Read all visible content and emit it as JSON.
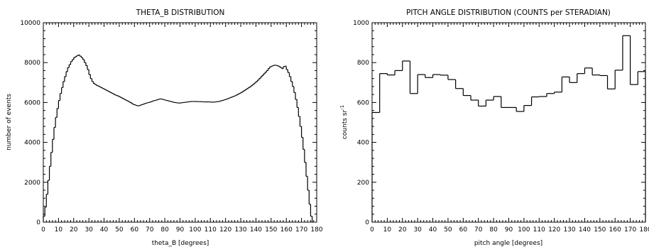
{
  "chart_data": [
    {
      "type": "bar",
      "style": "step-histogram",
      "title": "THETA_B DISTRIBUTION",
      "xlabel": "theta_B [degrees]",
      "ylabel": "number of events",
      "xlim": [
        0,
        180
      ],
      "ylim": [
        0,
        10000
      ],
      "xticks": [
        "0",
        "10",
        "20",
        "30",
        "40",
        "50",
        "60",
        "70",
        "80",
        "90",
        "100",
        "110",
        "120",
        "130",
        "140",
        "150",
        "160",
        "170",
        "180"
      ],
      "yticks": [
        "0",
        "2000",
        "4000",
        "6000",
        "8000",
        "10000"
      ],
      "bin_width": 1,
      "x_start": 0,
      "values": [
        300,
        750,
        1400,
        2100,
        2800,
        3500,
        4150,
        4750,
        5250,
        5700,
        6100,
        6450,
        6750,
        7050,
        7300,
        7550,
        7750,
        7900,
        8050,
        8150,
        8250,
        8300,
        8350,
        8380,
        8320,
        8250,
        8150,
        8000,
        7850,
        7650,
        7400,
        7200,
        7050,
        6950,
        6900,
        6850,
        6820,
        6780,
        6740,
        6700,
        6660,
        6620,
        6580,
        6540,
        6500,
        6460,
        6420,
        6380,
        6350,
        6320,
        6280,
        6240,
        6200,
        6160,
        6120,
        6080,
        6040,
        6000,
        5950,
        5900,
        5880,
        5850,
        5830,
        5850,
        5880,
        5900,
        5930,
        5960,
        5980,
        6000,
        6020,
        6050,
        6080,
        6100,
        6120,
        6150,
        6170,
        6180,
        6160,
        6140,
        6120,
        6100,
        6080,
        6060,
        6040,
        6020,
        6000,
        5990,
        5980,
        5970,
        5980,
        5990,
        6000,
        6010,
        6020,
        6030,
        6040,
        6050,
        6050,
        6050,
        6050,
        6050,
        6040,
        6040,
        6040,
        6030,
        6030,
        6030,
        6030,
        6030,
        6020,
        6020,
        6020,
        6030,
        6040,
        6050,
        6070,
        6090,
        6110,
        6140,
        6160,
        6190,
        6220,
        6250,
        6280,
        6310,
        6340,
        6380,
        6420,
        6460,
        6500,
        6550,
        6600,
        6650,
        6700,
        6750,
        6800,
        6860,
        6920,
        6980,
        7050,
        7120,
        7200,
        7280,
        7360,
        7440,
        7520,
        7600,
        7700,
        7780,
        7820,
        7850,
        7870,
        7860,
        7840,
        7800,
        7750,
        7700,
        7800,
        7820,
        7650,
        7500,
        7300,
        7050,
        6800,
        6500,
        6150,
        5750,
        5300,
        4800,
        4250,
        3650,
        3000,
        2300,
        1600,
        900,
        300
      ],
      "grid": false,
      "legend": "none"
    },
    {
      "type": "bar",
      "style": "step-histogram",
      "title": "PITCH ANGLE DISTRIBUTION (COUNTS per STERADIAN)",
      "xlabel": "pitch angle [degrees]",
      "ylabel": "counts sr",
      "ylabel_sup": "-1",
      "xlim": [
        0,
        180
      ],
      "ylim": [
        0,
        1000
      ],
      "xticks": [
        "0",
        "10",
        "20",
        "30",
        "40",
        "50",
        "60",
        "70",
        "80",
        "90",
        "100",
        "110",
        "120",
        "130",
        "140",
        "150",
        "160",
        "170",
        "180"
      ],
      "yticks": [
        "0",
        "200",
        "400",
        "600",
        "800",
        "1000"
      ],
      "bin_width": 5,
      "x_start": 0,
      "values": [
        550,
        745,
        738,
        760,
        808,
        645,
        740,
        725,
        740,
        737,
        715,
        670,
        635,
        612,
        582,
        612,
        630,
        575,
        575,
        555,
        585,
        628,
        630,
        645,
        652,
        728,
        700,
        745,
        773,
        738,
        735,
        668,
        762,
        935,
        690,
        755
      ],
      "grid": false,
      "legend": "none"
    }
  ]
}
